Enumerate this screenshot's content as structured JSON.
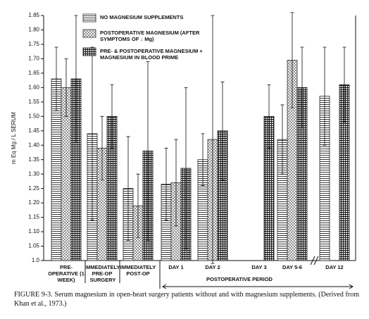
{
  "chart_data": {
    "type": "bar",
    "y_label": "m Eq Mg / L SERUM",
    "categories": [
      "PRE-OPERATIVE (1 WEEK)",
      "IMMEDIATELY PRE-OP",
      "IMMEDIATELY POST-OP",
      "DAY 1",
      "DAY 2",
      "DAY 3",
      "DAY 5-6",
      "DAY 12"
    ],
    "annotations": [
      "SURGERY",
      "POSTOPERATIVE PERIOD"
    ],
    "series": [
      {
        "name": "NO MAGNESIUM SUPPLEMENTS",
        "color": "#222222",
        "values": [
          1.63,
          1.44,
          1.25,
          1.265,
          1.35,
          null,
          1.42,
          1.57
        ],
        "errors": [
          0.11,
          0.3,
          0.18,
          0.125,
          0.09,
          null,
          0.12,
          0.17
        ]
      },
      {
        "name": "POSTOPERATIVE MAGNESIUM (AFTER SYMPTOMS OF ↓ Mg)",
        "color": "#333333",
        "values": [
          1.6,
          1.39,
          1.19,
          1.27,
          1.42,
          null,
          1.695,
          null
        ],
        "errors": [
          0.1,
          0.11,
          0.11,
          0.15,
          0.43,
          null,
          0.165,
          null
        ]
      },
      {
        "name": "PRE- & POSTOPERATIVE MAGNESIUM + MAGNESIUM IN BLOOD PRIME",
        "color": "#111111",
        "values": [
          1.63,
          1.5,
          1.38,
          1.32,
          1.45,
          1.5,
          1.6,
          1.61
        ],
        "errors": [
          0.22,
          0.11,
          0.31,
          0.28,
          0.17,
          0.11,
          0.14,
          0.13
        ]
      }
    ],
    "ylim": [
      1.0,
      1.85
    ],
    "yticks": [
      {
        "value": 1.0,
        "label": "1.0"
      },
      1.05,
      {
        "value": 1.1,
        "label": "1.10"
      },
      1.15,
      {
        "value": 1.2,
        "label": "1.20"
      },
      1.25,
      {
        "value": 1.3,
        "label": "1.30"
      },
      1.35,
      {
        "value": 1.4,
        "label": "1.40"
      },
      1.45,
      {
        "value": 1.5,
        "label": "1.50"
      },
      1.55,
      {
        "value": 1.6,
        "label": "1.60"
      },
      1.65,
      {
        "value": 1.7,
        "label": "1.70"
      },
      1.75,
      {
        "value": 1.8,
        "label": "1.80"
      },
      1.85
    ],
    "caption": "FIGURE 9-3. Serum magnesium in open-heart surgery patients without and with magnesium supplements. (Derived from Khan et al., 1973.)"
  }
}
